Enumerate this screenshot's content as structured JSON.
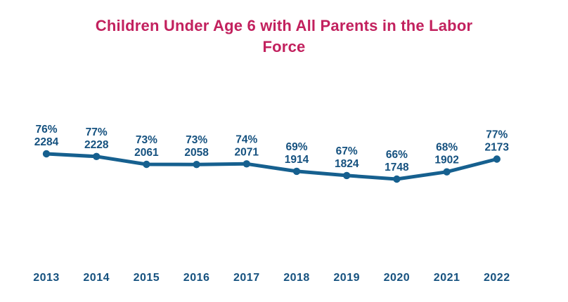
{
  "title": "Children Under Age 6 with All Parents in the Labor Force",
  "colors": {
    "title": "#c2215e",
    "line": "#16608f",
    "point": "#16608f",
    "data_label": "#15517f",
    "axis_label": "#15517f",
    "background": "#ffffff"
  },
  "chart_data": {
    "type": "line",
    "title": "Children Under Age 6 with All Parents in the Labor Force",
    "categories": [
      "2013",
      "2014",
      "2015",
      "2016",
      "2017",
      "2018",
      "2019",
      "2020",
      "2021",
      "2022"
    ],
    "series": [
      {
        "name": "percent",
        "unit": "%",
        "values": [
          76,
          77,
          73,
          73,
          74,
          69,
          67,
          66,
          68,
          77
        ]
      },
      {
        "name": "count",
        "unit": "",
        "values": [
          2284,
          2228,
          2061,
          2058,
          2071,
          1914,
          1824,
          1748,
          1902,
          2173
        ]
      }
    ],
    "point_labels": [
      "76% 2284",
      "77% 2228",
      "73% 2061",
      "73% 2058",
      "74% 2071",
      "69% 1914",
      "67% 1824",
      "66% 1748",
      "68% 1902",
      "77% 2173"
    ],
    "xlabel": "",
    "ylabel": "",
    "legend": false,
    "gridlines": false,
    "axes": "hidden",
    "y_plotted_by": "count",
    "ylim": [
      1748,
      2284
    ]
  }
}
